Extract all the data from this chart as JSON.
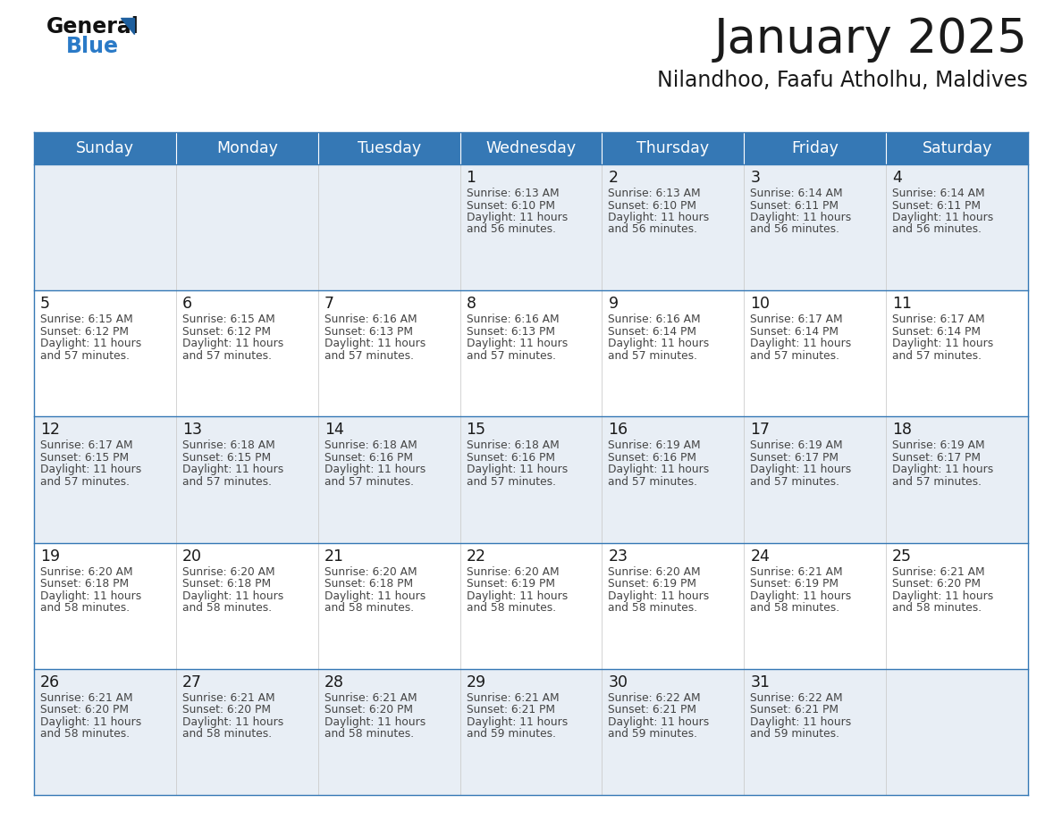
{
  "title": "January 2025",
  "subtitle": "Nilandhoo, Faafu Atholhu, Maldives",
  "days_of_week": [
    "Sunday",
    "Monday",
    "Tuesday",
    "Wednesday",
    "Thursday",
    "Friday",
    "Saturday"
  ],
  "header_bg_color": "#3578b5",
  "header_text_color": "#ffffff",
  "row0_bg": "#e8eef5",
  "row1_bg": "#ffffff",
  "row2_bg": "#e8eef5",
  "row3_bg": "#ffffff",
  "row4_bg": "#e8eef5",
  "grid_line_color": "#3578b5",
  "title_color": "#1a1a1a",
  "subtitle_color": "#1a1a1a",
  "day_number_color": "#1a1a1a",
  "cell_text_color": "#444444",
  "calendar_data": [
    [
      null,
      null,
      null,
      {
        "day": 1,
        "sunrise": "6:13 AM",
        "sunset": "6:10 PM",
        "daylight_hours": 11,
        "daylight_minutes": 56
      },
      {
        "day": 2,
        "sunrise": "6:13 AM",
        "sunset": "6:10 PM",
        "daylight_hours": 11,
        "daylight_minutes": 56
      },
      {
        "day": 3,
        "sunrise": "6:14 AM",
        "sunset": "6:11 PM",
        "daylight_hours": 11,
        "daylight_minutes": 56
      },
      {
        "day": 4,
        "sunrise": "6:14 AM",
        "sunset": "6:11 PM",
        "daylight_hours": 11,
        "daylight_minutes": 56
      }
    ],
    [
      {
        "day": 5,
        "sunrise": "6:15 AM",
        "sunset": "6:12 PM",
        "daylight_hours": 11,
        "daylight_minutes": 57
      },
      {
        "day": 6,
        "sunrise": "6:15 AM",
        "sunset": "6:12 PM",
        "daylight_hours": 11,
        "daylight_minutes": 57
      },
      {
        "day": 7,
        "sunrise": "6:16 AM",
        "sunset": "6:13 PM",
        "daylight_hours": 11,
        "daylight_minutes": 57
      },
      {
        "day": 8,
        "sunrise": "6:16 AM",
        "sunset": "6:13 PM",
        "daylight_hours": 11,
        "daylight_minutes": 57
      },
      {
        "day": 9,
        "sunrise": "6:16 AM",
        "sunset": "6:14 PM",
        "daylight_hours": 11,
        "daylight_minutes": 57
      },
      {
        "day": 10,
        "sunrise": "6:17 AM",
        "sunset": "6:14 PM",
        "daylight_hours": 11,
        "daylight_minutes": 57
      },
      {
        "day": 11,
        "sunrise": "6:17 AM",
        "sunset": "6:14 PM",
        "daylight_hours": 11,
        "daylight_minutes": 57
      }
    ],
    [
      {
        "day": 12,
        "sunrise": "6:17 AM",
        "sunset": "6:15 PM",
        "daylight_hours": 11,
        "daylight_minutes": 57
      },
      {
        "day": 13,
        "sunrise": "6:18 AM",
        "sunset": "6:15 PM",
        "daylight_hours": 11,
        "daylight_minutes": 57
      },
      {
        "day": 14,
        "sunrise": "6:18 AM",
        "sunset": "6:16 PM",
        "daylight_hours": 11,
        "daylight_minutes": 57
      },
      {
        "day": 15,
        "sunrise": "6:18 AM",
        "sunset": "6:16 PM",
        "daylight_hours": 11,
        "daylight_minutes": 57
      },
      {
        "day": 16,
        "sunrise": "6:19 AM",
        "sunset": "6:16 PM",
        "daylight_hours": 11,
        "daylight_minutes": 57
      },
      {
        "day": 17,
        "sunrise": "6:19 AM",
        "sunset": "6:17 PM",
        "daylight_hours": 11,
        "daylight_minutes": 57
      },
      {
        "day": 18,
        "sunrise": "6:19 AM",
        "sunset": "6:17 PM",
        "daylight_hours": 11,
        "daylight_minutes": 57
      }
    ],
    [
      {
        "day": 19,
        "sunrise": "6:20 AM",
        "sunset": "6:18 PM",
        "daylight_hours": 11,
        "daylight_minutes": 58
      },
      {
        "day": 20,
        "sunrise": "6:20 AM",
        "sunset": "6:18 PM",
        "daylight_hours": 11,
        "daylight_minutes": 58
      },
      {
        "day": 21,
        "sunrise": "6:20 AM",
        "sunset": "6:18 PM",
        "daylight_hours": 11,
        "daylight_minutes": 58
      },
      {
        "day": 22,
        "sunrise": "6:20 AM",
        "sunset": "6:19 PM",
        "daylight_hours": 11,
        "daylight_minutes": 58
      },
      {
        "day": 23,
        "sunrise": "6:20 AM",
        "sunset": "6:19 PM",
        "daylight_hours": 11,
        "daylight_minutes": 58
      },
      {
        "day": 24,
        "sunrise": "6:21 AM",
        "sunset": "6:19 PM",
        "daylight_hours": 11,
        "daylight_minutes": 58
      },
      {
        "day": 25,
        "sunrise": "6:21 AM",
        "sunset": "6:20 PM",
        "daylight_hours": 11,
        "daylight_minutes": 58
      }
    ],
    [
      {
        "day": 26,
        "sunrise": "6:21 AM",
        "sunset": "6:20 PM",
        "daylight_hours": 11,
        "daylight_minutes": 58
      },
      {
        "day": 27,
        "sunrise": "6:21 AM",
        "sunset": "6:20 PM",
        "daylight_hours": 11,
        "daylight_minutes": 58
      },
      {
        "day": 28,
        "sunrise": "6:21 AM",
        "sunset": "6:20 PM",
        "daylight_hours": 11,
        "daylight_minutes": 58
      },
      {
        "day": 29,
        "sunrise": "6:21 AM",
        "sunset": "6:21 PM",
        "daylight_hours": 11,
        "daylight_minutes": 59
      },
      {
        "day": 30,
        "sunrise": "6:22 AM",
        "sunset": "6:21 PM",
        "daylight_hours": 11,
        "daylight_minutes": 59
      },
      {
        "day": 31,
        "sunrise": "6:22 AM",
        "sunset": "6:21 PM",
        "daylight_hours": 11,
        "daylight_minutes": 59
      },
      null
    ]
  ],
  "logo_triangle_color": "#1e5f9e",
  "logo_blue_color": "#2a7ac7",
  "fig_width": 11.88,
  "fig_height": 9.18,
  "dpi": 100
}
